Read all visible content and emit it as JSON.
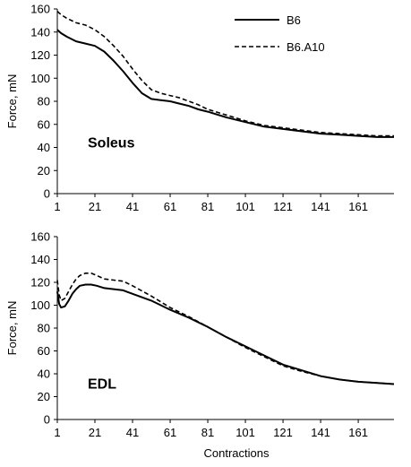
{
  "legend": {
    "position": "top-right",
    "items": [
      {
        "label": "B6",
        "style": "solid"
      },
      {
        "label": "B6.A10",
        "style": "dashed"
      }
    ]
  },
  "chart_data": [
    {
      "type": "line",
      "panel_label": "Soleus",
      "ylabel": "Force, mN",
      "xlabel": "",
      "ylim": [
        0,
        160
      ],
      "yticks": [
        0,
        20,
        40,
        60,
        80,
        100,
        120,
        140,
        160
      ],
      "xticks": [
        1,
        21,
        41,
        61,
        81,
        101,
        121,
        141,
        161
      ],
      "xlim": [
        1,
        180
      ],
      "grid": false,
      "series": [
        {
          "name": "B6",
          "style": "solid",
          "x": [
            1,
            3,
            6,
            11,
            16,
            21,
            26,
            31,
            36,
            41,
            46,
            51,
            56,
            61,
            66,
            71,
            76,
            81,
            91,
            101,
            111,
            121,
            131,
            141,
            151,
            161,
            171,
            180
          ],
          "y": [
            142,
            139,
            136,
            132,
            130,
            128,
            123,
            115,
            106,
            96,
            87,
            82,
            81,
            80,
            78,
            76,
            73,
            71,
            66,
            62,
            58,
            56,
            54,
            52,
            51,
            50,
            49,
            49
          ]
        },
        {
          "name": "B6.A10",
          "style": "dashed",
          "x": [
            1,
            3,
            6,
            11,
            16,
            21,
            26,
            31,
            36,
            41,
            46,
            51,
            56,
            61,
            66,
            71,
            76,
            81,
            91,
            101,
            111,
            121,
            131,
            141,
            151,
            161,
            171,
            180
          ],
          "y": [
            158,
            155,
            152,
            148,
            146,
            142,
            136,
            128,
            119,
            108,
            98,
            90,
            87,
            85,
            83,
            80,
            77,
            73,
            68,
            63,
            59,
            57,
            55,
            53,
            52,
            51,
            50,
            50
          ]
        }
      ]
    },
    {
      "type": "line",
      "panel_label": "EDL",
      "ylabel": "Force, mN",
      "xlabel": "Contractions",
      "ylim": [
        0,
        160
      ],
      "yticks": [
        0,
        20,
        40,
        60,
        80,
        100,
        120,
        140,
        160
      ],
      "xticks": [
        1,
        21,
        41,
        61,
        81,
        101,
        121,
        141,
        161
      ],
      "xlim": [
        1,
        180
      ],
      "grid": false,
      "series": [
        {
          "name": "B6",
          "style": "solid",
          "x": [
            1,
            2,
            3,
            5,
            7,
            9,
            11,
            13,
            16,
            19,
            22,
            26,
            31,
            36,
            41,
            51,
            61,
            71,
            81,
            91,
            101,
            111,
            121,
            131,
            141,
            151,
            161,
            171,
            180
          ],
          "y": [
            112,
            101,
            98,
            99,
            104,
            110,
            114,
            117,
            118,
            118,
            117,
            115,
            114,
            113,
            110,
            104,
            96,
            89,
            81,
            72,
            64,
            56,
            48,
            43,
            38,
            35,
            33,
            32,
            31
          ]
        },
        {
          "name": "B6.A10",
          "style": "dashed",
          "x": [
            1,
            2,
            3,
            5,
            7,
            9,
            11,
            13,
            16,
            19,
            22,
            26,
            31,
            36,
            41,
            51,
            61,
            71,
            81,
            91,
            101,
            111,
            121,
            131,
            141,
            151,
            161,
            171,
            180
          ],
          "y": [
            122,
            109,
            104,
            106,
            112,
            118,
            123,
            126,
            128,
            128,
            126,
            123,
            122,
            121,
            117,
            108,
            98,
            90,
            81,
            72,
            63,
            55,
            47,
            42,
            38,
            35,
            33,
            32,
            31
          ]
        }
      ]
    }
  ]
}
